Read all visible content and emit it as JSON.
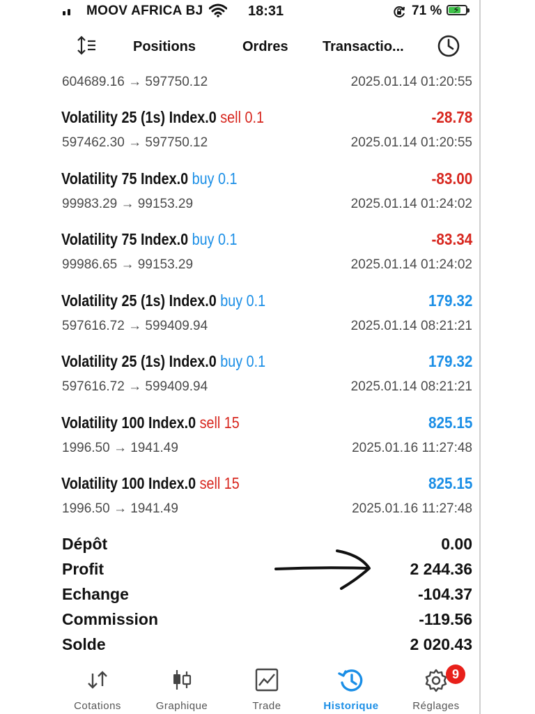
{
  "status_bar": {
    "carrier": "MOOV AFRICA BJ",
    "time": "18:31",
    "battery_percent": "71 %",
    "battery_level": 0.71,
    "icons": [
      "signal-icon",
      "wifi-icon",
      "rotation-lock-icon",
      "battery-charging-icon"
    ]
  },
  "header": {
    "tabs": [
      {
        "label": "Positions"
      },
      {
        "label": "Ordres"
      },
      {
        "label": "Transactio..."
      }
    ],
    "icons": [
      "sort-icon",
      "clock-icon"
    ]
  },
  "partial_first_row": {
    "prices": "604689.16 → 597750.12",
    "datetime": "2025.01.14 01:20:55"
  },
  "deals": [
    {
      "symbol": "Volatility 25 (1s) Index.0",
      "side": "sell",
      "volume": "0.1",
      "profit": "-28.78",
      "prices": "597462.30 → 597750.12",
      "datetime": "2025.01.14 01:20:55"
    },
    {
      "symbol": "Volatility 75 Index.0",
      "side": "buy",
      "volume": "0.1",
      "profit": "-83.00",
      "prices": "99983.29 → 99153.29",
      "datetime": "2025.01.14 01:24:02"
    },
    {
      "symbol": "Volatility 75 Index.0",
      "side": "buy",
      "volume": "0.1",
      "profit": "-83.34",
      "prices": "99986.65 → 99153.29",
      "datetime": "2025.01.14 01:24:02"
    },
    {
      "symbol": "Volatility 25 (1s) Index.0",
      "side": "buy",
      "volume": "0.1",
      "profit": "179.32",
      "prices": "597616.72 → 599409.94",
      "datetime": "2025.01.14 08:21:21"
    },
    {
      "symbol": "Volatility 25 (1s) Index.0",
      "side": "buy",
      "volume": "0.1",
      "profit": "179.32",
      "prices": "597616.72 → 599409.94",
      "datetime": "2025.01.14 08:21:21"
    },
    {
      "symbol": "Volatility 100 Index.0",
      "side": "sell",
      "volume": "15",
      "profit": "825.15",
      "prices": "1996.50 → 1941.49",
      "datetime": "2025.01.16 11:27:48"
    },
    {
      "symbol": "Volatility 100 Index.0",
      "side": "sell",
      "volume": "15",
      "profit": "825.15",
      "prices": "1996.50 → 1941.49",
      "datetime": "2025.01.16 11:27:48"
    }
  ],
  "summary": [
    {
      "label": "Dépôt",
      "value": "0.00"
    },
    {
      "label": "Profit",
      "value": "2 244.36"
    },
    {
      "label": "Echange",
      "value": "-104.37"
    },
    {
      "label": "Commission",
      "value": "-119.56"
    },
    {
      "label": "Solde",
      "value": "2 020.43"
    }
  ],
  "nav": {
    "items": [
      {
        "label": "Cotations",
        "icon": "quotes-arrows-icon"
      },
      {
        "label": "Graphique",
        "icon": "candlestick-chart-icon"
      },
      {
        "label": "Trade",
        "icon": "trade-chart-icon"
      },
      {
        "label": "Historique",
        "icon": "history-icon"
      },
      {
        "label": "Réglages",
        "icon": "settings-gear-icon"
      }
    ],
    "active": "Historique",
    "settings_badge": "9"
  },
  "colors": {
    "negative": "#d7261e",
    "positive": "#1a8ee6",
    "accent": "#1a8ee6",
    "badge": "#e8201a"
  }
}
